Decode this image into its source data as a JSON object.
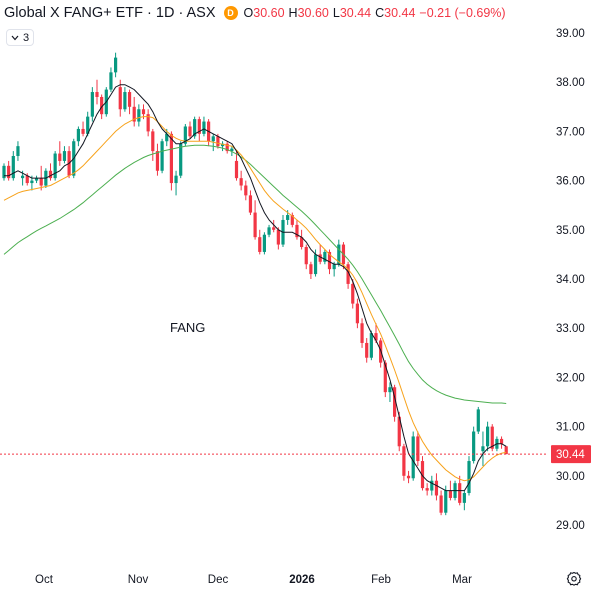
{
  "header": {
    "title": "Global X FANG+ ETF · 1D · ASX",
    "badge": "D",
    "open_label": "O",
    "open": "30.60",
    "high_label": "H",
    "high": "30.60",
    "low_label": "L",
    "low": "30.44",
    "close_label": "C",
    "close": "30.44",
    "change": "−0.21 (−0.69%)"
  },
  "indicators_toggle": {
    "chevron": "chevron-down-icon",
    "count": "3"
  },
  "watermark": "FANG",
  "price_axis": {
    "ticks": [
      "39.00",
      "38.00",
      "37.00",
      "36.00",
      "35.00",
      "34.00",
      "33.00",
      "32.00",
      "31.00",
      "30.00",
      "29.00"
    ],
    "last_price": "30.44",
    "last_price_color": "#f23645"
  },
  "time_axis": {
    "labels": [
      "Oct",
      "Nov",
      "Dec",
      "2026",
      "Feb",
      "Mar"
    ]
  },
  "colors": {
    "up": "#089981",
    "down": "#f23645",
    "ma_fast": "#131722",
    "ma_mid": "#f7a21b",
    "ma_slow": "#4caf50"
  },
  "chart_data": {
    "type": "candlestick",
    "ylim": [
      28.3,
      39.2
    ],
    "candles": [
      [
        36.05,
        36.35,
        36.0,
        36.3
      ],
      [
        36.3,
        36.4,
        36.0,
        36.05
      ],
      [
        36.05,
        36.6,
        36.0,
        36.5
      ],
      [
        36.5,
        36.8,
        36.4,
        36.7
      ],
      [
        36.05,
        36.2,
        35.9,
        36.1
      ],
      [
        36.1,
        36.15,
        35.9,
        35.95
      ],
      [
        35.95,
        36.1,
        35.8,
        36.0
      ],
      [
        36.0,
        36.1,
        35.95,
        36.05
      ],
      [
        36.05,
        36.3,
        35.8,
        35.9
      ],
      [
        35.9,
        36.25,
        35.85,
        36.2
      ],
      [
        36.2,
        36.35,
        36.0,
        36.05
      ],
      [
        36.05,
        36.6,
        36.0,
        36.55
      ],
      [
        36.55,
        36.8,
        36.3,
        36.4
      ],
      [
        36.4,
        36.7,
        36.35,
        36.6
      ],
      [
        36.6,
        36.7,
        36.05,
        36.1
      ],
      [
        36.1,
        36.85,
        36.05,
        36.8
      ],
      [
        36.8,
        37.1,
        36.7,
        37.05
      ],
      [
        37.05,
        37.2,
        36.9,
        36.95
      ],
      [
        36.95,
        37.4,
        36.9,
        37.3
      ],
      [
        37.3,
        37.9,
        37.2,
        37.8
      ],
      [
        37.8,
        38.05,
        37.55,
        37.7
      ],
      [
        37.7,
        37.75,
        37.25,
        37.35
      ],
      [
        37.35,
        37.9,
        37.3,
        37.85
      ],
      [
        37.85,
        38.3,
        37.8,
        38.2
      ],
      [
        38.2,
        38.6,
        38.1,
        38.5
      ],
      [
        37.9,
        38.05,
        37.3,
        37.45
      ],
      [
        37.45,
        37.9,
        37.4,
        37.8
      ],
      [
        37.8,
        37.85,
        37.35,
        37.5
      ],
      [
        37.5,
        37.7,
        37.1,
        37.2
      ],
      [
        37.2,
        37.55,
        37.1,
        37.45
      ],
      [
        37.45,
        37.55,
        37.25,
        37.35
      ],
      [
        37.35,
        37.45,
        36.9,
        37.0
      ],
      [
        37.0,
        37.05,
        36.4,
        36.6
      ],
      [
        36.6,
        36.75,
        36.1,
        36.2
      ],
      [
        36.2,
        36.85,
        36.15,
        36.8
      ],
      [
        36.8,
        37.05,
        36.7,
        36.95
      ],
      [
        36.95,
        37.0,
        35.8,
        35.95
      ],
      [
        35.95,
        36.2,
        35.7,
        36.1
      ],
      [
        36.1,
        36.8,
        36.05,
        36.75
      ],
      [
        36.75,
        37.15,
        36.7,
        37.1
      ],
      [
        37.1,
        37.2,
        36.85,
        36.9
      ],
      [
        36.9,
        37.3,
        36.85,
        37.25
      ],
      [
        37.25,
        37.3,
        36.8,
        36.95
      ],
      [
        36.95,
        37.3,
        36.9,
        37.2
      ],
      [
        37.2,
        37.25,
        36.7,
        36.8
      ],
      [
        36.8,
        36.95,
        36.6,
        36.9
      ],
      [
        36.9,
        36.95,
        36.65,
        36.7
      ],
      [
        36.7,
        36.8,
        36.6,
        36.75
      ],
      [
        36.75,
        36.8,
        36.55,
        36.6
      ],
      [
        36.6,
        36.7,
        36.5,
        36.65
      ],
      [
        36.4,
        36.6,
        36.0,
        36.05
      ],
      [
        36.05,
        36.2,
        35.8,
        35.9
      ],
      [
        35.9,
        36.0,
        35.6,
        35.7
      ],
      [
        35.7,
        35.8,
        35.3,
        35.35
      ],
      [
        35.35,
        35.6,
        34.8,
        34.85
      ],
      [
        34.85,
        35.0,
        34.5,
        34.55
      ],
      [
        34.55,
        34.95,
        34.5,
        34.9
      ],
      [
        34.9,
        35.1,
        34.85,
        35.05
      ],
      [
        35.05,
        35.2,
        34.95,
        35.0
      ],
      [
        35.0,
        35.05,
        34.6,
        34.7
      ],
      [
        34.7,
        35.3,
        34.65,
        35.2
      ],
      [
        35.2,
        35.4,
        35.1,
        35.3
      ],
      [
        35.3,
        35.35,
        35.05,
        35.1
      ],
      [
        35.1,
        35.2,
        34.8,
        34.85
      ],
      [
        34.85,
        35.0,
        34.6,
        34.65
      ],
      [
        34.65,
        34.7,
        34.2,
        34.3
      ],
      [
        34.3,
        34.35,
        34.0,
        34.1
      ],
      [
        34.1,
        34.6,
        34.05,
        34.5
      ],
      [
        34.5,
        34.7,
        34.3,
        34.35
      ],
      [
        34.35,
        34.6,
        34.3,
        34.55
      ],
      [
        34.55,
        34.6,
        34.1,
        34.2
      ],
      [
        34.2,
        34.35,
        34.05,
        34.3
      ],
      [
        34.3,
        34.8,
        34.25,
        34.7
      ],
      [
        34.7,
        34.75,
        34.2,
        34.3
      ],
      [
        34.3,
        34.35,
        33.8,
        33.9
      ],
      [
        33.9,
        34.0,
        33.4,
        33.5
      ],
      [
        33.5,
        33.6,
        33.0,
        33.1
      ],
      [
        33.1,
        33.2,
        32.6,
        32.7
      ],
      [
        32.7,
        32.8,
        32.3,
        32.4
      ],
      [
        32.4,
        32.95,
        32.35,
        32.9
      ],
      [
        32.9,
        33.1,
        32.7,
        32.75
      ],
      [
        32.75,
        32.8,
        32.2,
        32.3
      ],
      [
        32.3,
        32.35,
        31.6,
        31.7
      ],
      [
        31.7,
        31.9,
        31.5,
        31.8
      ],
      [
        31.8,
        31.85,
        31.1,
        31.2
      ],
      [
        31.2,
        31.3,
        30.5,
        30.6
      ],
      [
        30.6,
        30.65,
        29.9,
        30.0
      ],
      [
        30.0,
        30.1,
        29.85,
        29.95
      ],
      [
        29.95,
        30.9,
        29.9,
        30.8
      ],
      [
        30.8,
        30.9,
        30.2,
        30.3
      ],
      [
        30.3,
        30.4,
        29.7,
        29.75
      ],
      [
        29.75,
        29.85,
        29.6,
        29.7
      ],
      [
        29.7,
        30.0,
        29.6,
        29.9
      ],
      [
        29.9,
        30.05,
        29.5,
        29.6
      ],
      [
        29.6,
        29.7,
        29.2,
        29.25
      ],
      [
        29.25,
        29.8,
        29.2,
        29.7
      ],
      [
        29.7,
        29.9,
        29.5,
        29.55
      ],
      [
        29.55,
        29.9,
        29.5,
        29.85
      ],
      [
        29.85,
        30.0,
        29.4,
        29.45
      ],
      [
        29.45,
        29.7,
        29.3,
        29.65
      ],
      [
        29.65,
        30.4,
        29.6,
        30.3
      ],
      [
        30.3,
        31.0,
        30.25,
        30.9
      ],
      [
        30.9,
        31.4,
        30.85,
        31.35
      ],
      [
        30.5,
        30.9,
        30.2,
        30.6
      ],
      [
        30.6,
        31.1,
        30.5,
        31.0
      ],
      [
        31.0,
        31.05,
        30.5,
        30.55
      ],
      [
        30.55,
        30.8,
        30.5,
        30.75
      ],
      [
        30.75,
        30.8,
        30.55,
        30.65
      ],
      [
        30.6,
        30.6,
        30.44,
        30.44
      ]
    ],
    "ma_fast": [
      36.1,
      36.1,
      36.15,
      36.2,
      36.15,
      36.1,
      36.05,
      36.05,
      36.05,
      36.05,
      36.1,
      36.15,
      36.2,
      36.3,
      36.35,
      36.45,
      36.6,
      36.75,
      36.95,
      37.15,
      37.35,
      37.5,
      37.6,
      37.75,
      37.9,
      37.95,
      37.95,
      37.9,
      37.85,
      37.75,
      37.65,
      37.55,
      37.4,
      37.2,
      37.05,
      36.95,
      36.85,
      36.75,
      36.75,
      36.8,
      36.85,
      36.95,
      37.0,
      37.05,
      37.0,
      36.95,
      36.9,
      36.85,
      36.8,
      36.75,
      36.6,
      36.45,
      36.25,
      36.05,
      35.8,
      35.55,
      35.35,
      35.2,
      35.1,
      35.0,
      34.95,
      34.95,
      34.95,
      34.9,
      34.85,
      34.75,
      34.6,
      34.5,
      34.45,
      34.4,
      34.35,
      34.3,
      34.3,
      34.25,
      34.15,
      33.95,
      33.7,
      33.4,
      33.1,
      32.9,
      32.75,
      32.55,
      32.25,
      31.95,
      31.6,
      31.2,
      30.8,
      30.45,
      30.3,
      30.15,
      30.0,
      29.9,
      29.85,
      29.8,
      29.75,
      29.7,
      29.7,
      29.7,
      29.7,
      29.7,
      29.85,
      30.05,
      30.3,
      30.45,
      30.55,
      30.6,
      30.65,
      30.65,
      30.6
    ],
    "ma_mid": [
      35.6,
      35.65,
      35.7,
      35.75,
      35.78,
      35.8,
      35.82,
      35.84,
      35.86,
      35.88,
      35.9,
      35.95,
      36.0,
      36.05,
      36.1,
      36.15,
      36.22,
      36.3,
      36.4,
      36.5,
      36.6,
      36.7,
      36.8,
      36.9,
      37.0,
      37.08,
      37.15,
      37.2,
      37.25,
      37.28,
      37.3,
      37.3,
      37.28,
      37.2,
      37.1,
      37.0,
      36.92,
      36.86,
      36.82,
      36.8,
      36.8,
      36.8,
      36.8,
      36.8,
      36.8,
      36.78,
      36.76,
      36.74,
      36.72,
      36.7,
      36.62,
      36.52,
      36.4,
      36.25,
      36.1,
      35.95,
      35.8,
      35.68,
      35.58,
      35.5,
      35.42,
      35.35,
      35.28,
      35.2,
      35.12,
      35.03,
      34.92,
      34.8,
      34.7,
      34.6,
      34.5,
      34.42,
      34.35,
      34.28,
      34.2,
      34.08,
      33.92,
      33.72,
      33.5,
      33.28,
      33.08,
      32.88,
      32.65,
      32.4,
      32.15,
      31.88,
      31.6,
      31.32,
      31.08,
      30.88,
      30.7,
      30.55,
      30.42,
      30.32,
      30.22,
      30.12,
      30.05,
      29.98,
      29.93,
      29.9,
      29.92,
      29.98,
      30.08,
      30.18,
      30.28,
      30.36,
      30.42,
      30.46,
      30.48
    ],
    "ma_slow": [
      34.5,
      34.58,
      34.66,
      34.74,
      34.8,
      34.86,
      34.92,
      34.98,
      35.03,
      35.08,
      35.13,
      35.18,
      35.23,
      35.29,
      35.35,
      35.41,
      35.48,
      35.55,
      35.63,
      35.71,
      35.79,
      35.87,
      35.95,
      36.03,
      36.11,
      36.18,
      36.25,
      36.31,
      36.37,
      36.42,
      36.47,
      36.51,
      36.54,
      36.57,
      36.6,
      36.62,
      36.64,
      36.66,
      36.68,
      36.7,
      36.71,
      36.72,
      36.72,
      36.72,
      36.71,
      36.7,
      36.68,
      36.66,
      36.63,
      36.59,
      36.54,
      36.48,
      36.41,
      36.33,
      36.24,
      36.15,
      36.06,
      35.97,
      35.88,
      35.79,
      35.7,
      35.62,
      35.54,
      35.46,
      35.38,
      35.29,
      35.2,
      35.1,
      35.0,
      34.9,
      34.8,
      34.7,
      34.6,
      34.5,
      34.4,
      34.28,
      34.15,
      34.0,
      33.84,
      33.68,
      33.52,
      33.36,
      33.19,
      33.02,
      32.85,
      32.67,
      32.49,
      32.32,
      32.18,
      32.06,
      31.95,
      31.86,
      31.79,
      31.73,
      31.68,
      31.64,
      31.61,
      31.58,
      31.56,
      31.54,
      31.53,
      31.52,
      31.51,
      31.5,
      31.49,
      31.48,
      31.48,
      31.48,
      31.47
    ]
  }
}
